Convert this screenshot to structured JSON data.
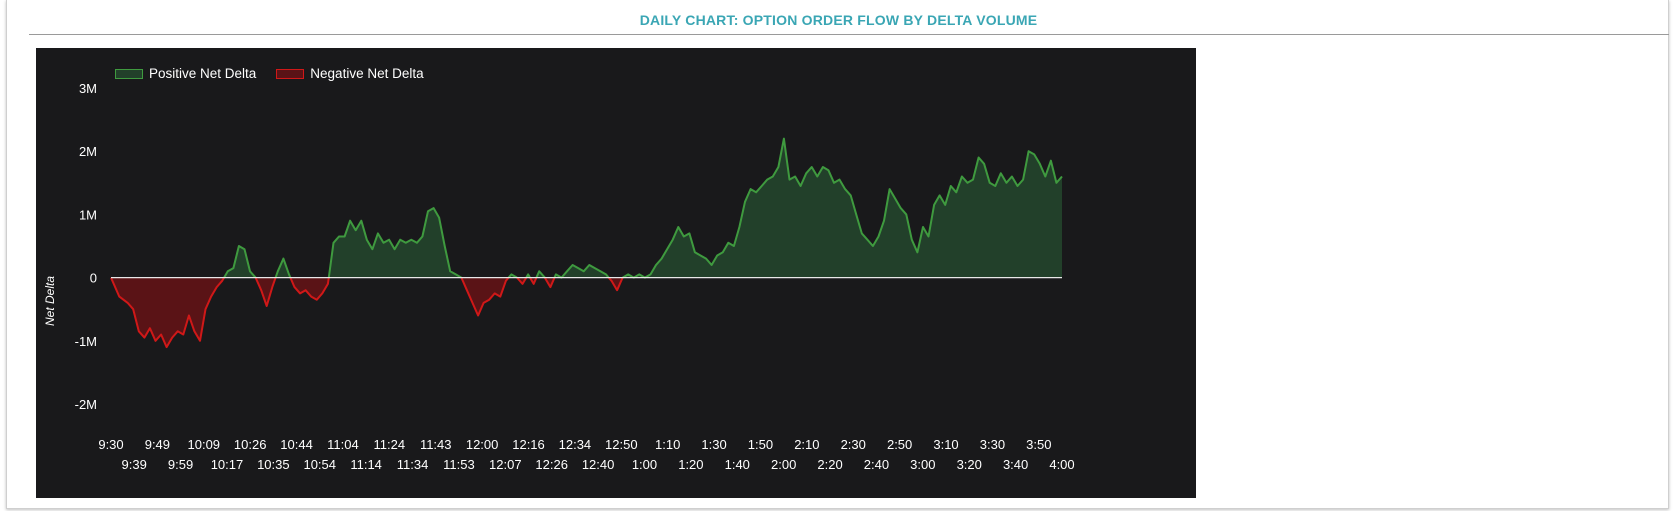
{
  "title": "DAILY CHART: OPTION ORDER FLOW BY DELTA VOLUME",
  "colors": {
    "title": "#3aa6b4",
    "chart_bg": "#19191b",
    "positive_line": "#3f9a3f",
    "positive_fill": "#22402a",
    "negative_line": "#d01818",
    "negative_fill": "#5a1316",
    "zero_line": "#e8e8e8",
    "text": "#ffffff"
  },
  "chart_data": {
    "type": "area",
    "title": "DAILY CHART: OPTION ORDER FLOW BY DELTA VOLUME",
    "xlabel": "",
    "ylabel": "Net Delta",
    "ylim": [
      -2000000,
      3000000
    ],
    "yticks": [
      {
        "value": 3000000,
        "label": "3M"
      },
      {
        "value": 2000000,
        "label": "2M"
      },
      {
        "value": 1000000,
        "label": "1M"
      },
      {
        "value": 0,
        "label": "0"
      },
      {
        "value": -1000000,
        "label": "-1M"
      },
      {
        "value": -2000000,
        "label": "-2M"
      }
    ],
    "xticks_top": [
      "9:30",
      "9:49",
      "10:09",
      "10:26",
      "10:44",
      "11:04",
      "11:24",
      "11:43",
      "12:00",
      "12:16",
      "12:34",
      "12:50",
      "1:10",
      "1:30",
      "1:50",
      "2:10",
      "2:30",
      "2:50",
      "3:10",
      "3:30",
      "3:50"
    ],
    "xticks_bottom": [
      "9:39",
      "9:59",
      "10:17",
      "10:35",
      "10:54",
      "11:14",
      "11:34",
      "11:53",
      "12:07",
      "12:26",
      "12:40",
      "1:00",
      "1:20",
      "1:40",
      "2:00",
      "2:20",
      "2:40",
      "3:00",
      "3:20",
      "3:40",
      "4:00"
    ],
    "legend": {
      "position": "top-left",
      "entries": [
        "Positive Net Delta",
        "Negative Net Delta"
      ]
    },
    "grid": false,
    "series": [
      {
        "name": "Net Delta",
        "points": [
          [
            0,
            0
          ],
          [
            1.5,
            -300000
          ],
          [
            3,
            -400000
          ],
          [
            4,
            -500000
          ],
          [
            5,
            -850000
          ],
          [
            6,
            -950000
          ],
          [
            7,
            -800000
          ],
          [
            8,
            -1000000
          ],
          [
            9,
            -900000
          ],
          [
            10,
            -1100000
          ],
          [
            11,
            -950000
          ],
          [
            12,
            -850000
          ],
          [
            13,
            -900000
          ],
          [
            14,
            -600000
          ],
          [
            15,
            -850000
          ],
          [
            16,
            -1000000
          ],
          [
            17,
            -500000
          ],
          [
            18,
            -300000
          ],
          [
            19,
            -150000
          ],
          [
            20,
            -50000
          ],
          [
            21,
            100000
          ],
          [
            22,
            150000
          ],
          [
            23,
            500000
          ],
          [
            24,
            450000
          ],
          [
            25,
            100000
          ],
          [
            26,
            0
          ],
          [
            27,
            -200000
          ],
          [
            28,
            -450000
          ],
          [
            29,
            -150000
          ],
          [
            30,
            100000
          ],
          [
            31,
            300000
          ],
          [
            32,
            50000
          ],
          [
            33,
            -150000
          ],
          [
            34,
            -250000
          ],
          [
            35,
            -200000
          ],
          [
            36,
            -300000
          ],
          [
            37,
            -350000
          ],
          [
            38,
            -250000
          ],
          [
            39,
            -100000
          ],
          [
            40,
            550000
          ],
          [
            41,
            650000
          ],
          [
            42,
            650000
          ],
          [
            43,
            900000
          ],
          [
            44,
            750000
          ],
          [
            45,
            900000
          ],
          [
            46,
            600000
          ],
          [
            47,
            450000
          ],
          [
            48,
            700000
          ],
          [
            49,
            550000
          ],
          [
            50,
            600000
          ],
          [
            51,
            450000
          ],
          [
            52,
            600000
          ],
          [
            53,
            550000
          ],
          [
            54,
            600000
          ],
          [
            55,
            550000
          ],
          [
            56,
            650000
          ],
          [
            57,
            1050000
          ],
          [
            58,
            1100000
          ],
          [
            59,
            950000
          ],
          [
            60,
            500000
          ],
          [
            61,
            100000
          ],
          [
            62,
            50000
          ],
          [
            63,
            0
          ],
          [
            64,
            -200000
          ],
          [
            65,
            -400000
          ],
          [
            66,
            -600000
          ],
          [
            67,
            -400000
          ],
          [
            68,
            -350000
          ],
          [
            69,
            -250000
          ],
          [
            70,
            -300000
          ],
          [
            71,
            -50000
          ],
          [
            72,
            50000
          ],
          [
            73,
            0
          ],
          [
            74,
            -100000
          ],
          [
            75,
            50000
          ],
          [
            76,
            -100000
          ],
          [
            77,
            100000
          ],
          [
            78,
            0
          ],
          [
            79,
            -150000
          ],
          [
            80,
            50000
          ],
          [
            81,
            0
          ],
          [
            82,
            100000
          ],
          [
            83,
            200000
          ],
          [
            84,
            150000
          ],
          [
            85,
            100000
          ],
          [
            86,
            200000
          ],
          [
            87,
            150000
          ],
          [
            88,
            100000
          ],
          [
            89,
            50000
          ],
          [
            90,
            -50000
          ],
          [
            91,
            -200000
          ],
          [
            92,
            0
          ],
          [
            93,
            50000
          ],
          [
            94,
            0
          ],
          [
            95,
            50000
          ],
          [
            96,
            0
          ],
          [
            97,
            50000
          ],
          [
            98,
            200000
          ],
          [
            99,
            300000
          ],
          [
            100,
            450000
          ],
          [
            101,
            600000
          ],
          [
            102,
            800000
          ],
          [
            103,
            650000
          ],
          [
            104,
            700000
          ],
          [
            105,
            400000
          ],
          [
            106,
            350000
          ],
          [
            107,
            300000
          ],
          [
            108,
            200000
          ],
          [
            109,
            350000
          ],
          [
            110,
            400000
          ],
          [
            111,
            550000
          ],
          [
            112,
            500000
          ],
          [
            113,
            800000
          ],
          [
            114,
            1200000
          ],
          [
            115,
            1400000
          ],
          [
            116,
            1350000
          ],
          [
            117,
            1450000
          ],
          [
            118,
            1550000
          ],
          [
            119,
            1600000
          ],
          [
            120,
            1750000
          ],
          [
            121,
            2200000
          ],
          [
            122,
            1550000
          ],
          [
            123,
            1600000
          ],
          [
            124,
            1450000
          ],
          [
            125,
            1650000
          ],
          [
            126,
            1750000
          ],
          [
            127,
            1600000
          ],
          [
            128,
            1750000
          ],
          [
            129,
            1700000
          ],
          [
            130,
            1500000
          ],
          [
            131,
            1550000
          ],
          [
            132,
            1400000
          ],
          [
            133,
            1300000
          ],
          [
            134,
            1000000
          ],
          [
            135,
            700000
          ],
          [
            136,
            600000
          ],
          [
            137,
            500000
          ],
          [
            138,
            650000
          ],
          [
            139,
            900000
          ],
          [
            140,
            1400000
          ],
          [
            141,
            1250000
          ],
          [
            142,
            1100000
          ],
          [
            143,
            1000000
          ],
          [
            144,
            600000
          ],
          [
            145,
            400000
          ],
          [
            146,
            800000
          ],
          [
            147,
            650000
          ],
          [
            148,
            1150000
          ],
          [
            149,
            1300000
          ],
          [
            150,
            1150000
          ],
          [
            151,
            1450000
          ],
          [
            152,
            1350000
          ],
          [
            153,
            1600000
          ],
          [
            154,
            1500000
          ],
          [
            155,
            1550000
          ],
          [
            156,
            1900000
          ],
          [
            157,
            1800000
          ],
          [
            158,
            1500000
          ],
          [
            159,
            1450000
          ],
          [
            160,
            1650000
          ],
          [
            161,
            1500000
          ],
          [
            162,
            1600000
          ],
          [
            163,
            1450000
          ],
          [
            164,
            1550000
          ],
          [
            165,
            2000000
          ],
          [
            166,
            1950000
          ],
          [
            167,
            1800000
          ],
          [
            168,
            1600000
          ],
          [
            169,
            1850000
          ],
          [
            170,
            1500000
          ],
          [
            171,
            1600000
          ]
        ],
        "x_span": [
          0,
          171
        ]
      }
    ]
  }
}
